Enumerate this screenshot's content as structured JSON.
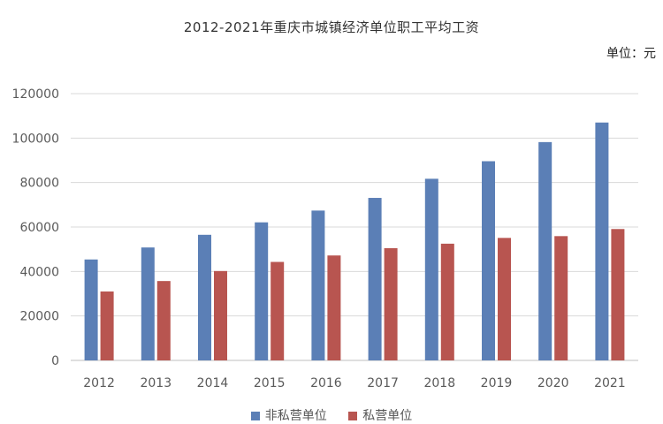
{
  "chart_data": {
    "type": "bar",
    "title": "2012-2021年重庆市城镇经济单位职工平均工资",
    "unit_label": "单位：元",
    "categories": [
      "2012",
      "2013",
      "2014",
      "2015",
      "2016",
      "2017",
      "2018",
      "2019",
      "2020",
      "2021"
    ],
    "ylim": [
      0,
      120000
    ],
    "yticks": [
      0,
      20000,
      40000,
      60000,
      80000,
      100000,
      120000
    ],
    "grid": true,
    "legend_position": "bottom",
    "series": [
      {
        "name": "非私营单位",
        "color": "#5b7fb6",
        "values": [
          45400,
          50800,
          56500,
          62100,
          67400,
          73100,
          81700,
          89600,
          98200,
          107000
        ]
      },
      {
        "name": "私营单位",
        "color": "#b85550",
        "values": [
          31000,
          35700,
          40200,
          44300,
          47200,
          50500,
          52500,
          55100,
          55900,
          59100
        ]
      }
    ]
  }
}
